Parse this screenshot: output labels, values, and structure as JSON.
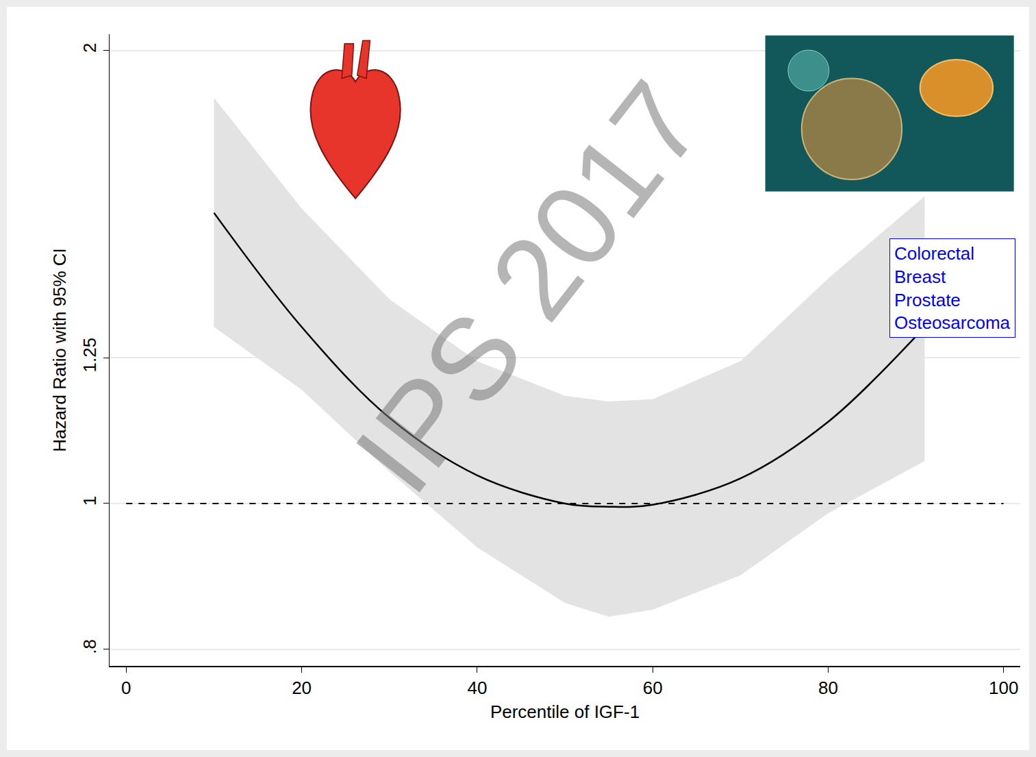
{
  "chart_data": {
    "type": "line",
    "watermark": "IPS 2017",
    "x_label": "Percentile of IGF-1",
    "y_label": "Hazard Ratio with 95% CI",
    "annotation": [
      "Colorectal",
      "Breast",
      "Prostate",
      "Osteosarcoma"
    ],
    "x": [
      10,
      20,
      30,
      40,
      50,
      55,
      60,
      70,
      80,
      91
    ],
    "values": [
      1.56,
      1.31,
      1.14,
      1.044,
      1.0,
      0.995,
      0.998,
      1.039,
      1.133,
      1.31
    ],
    "lower": [
      1.31,
      1.19,
      1.05,
      0.935,
      0.859,
      0.841,
      0.85,
      0.896,
      0.985,
      1.067
    ],
    "upper": [
      1.86,
      1.57,
      1.367,
      1.243,
      1.179,
      1.169,
      1.173,
      1.243,
      1.411,
      1.6
    ],
    "reference_line": 1,
    "color": "#000000",
    "band_color": "#e3e3e3",
    "log": "y",
    "grid": true,
    "xlim": [
      -1.9,
      101.9
    ],
    "xticks": [
      0,
      20,
      40,
      60,
      80,
      100
    ],
    "ylim": [
      0.78,
      2.05
    ],
    "yticks": [
      {
        "value": 0.8,
        "label": ".8"
      },
      1,
      1.25,
      2
    ]
  }
}
